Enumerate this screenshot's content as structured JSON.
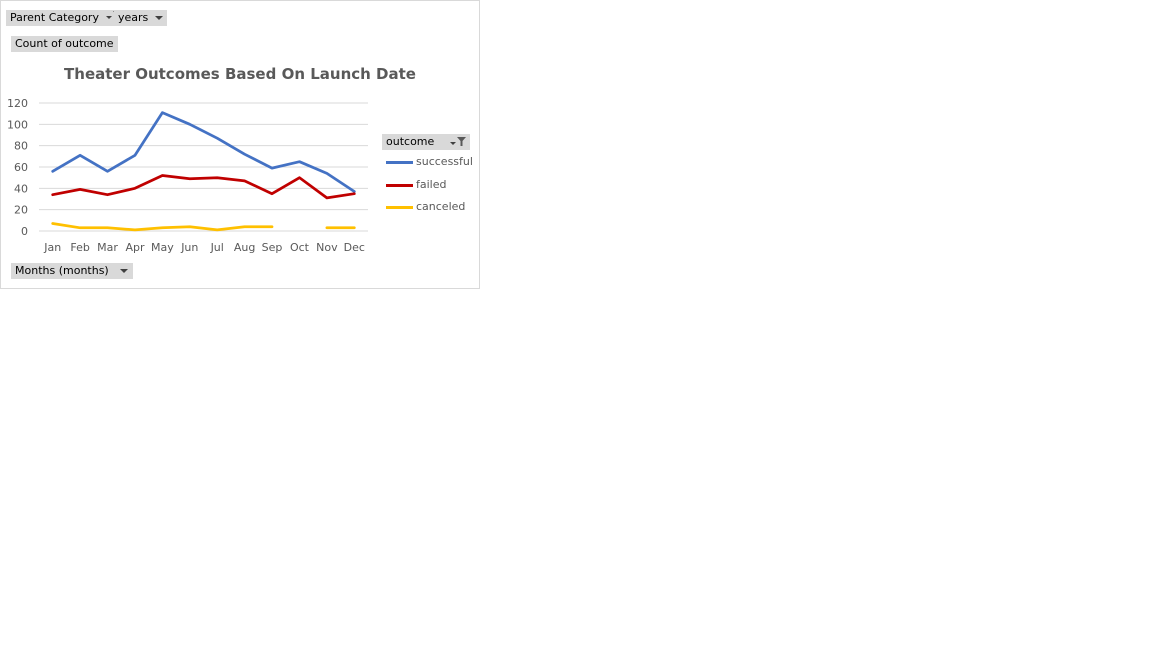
{
  "filters": {
    "parent_category": "Parent Category",
    "years": "years",
    "values_field": "Count of outcome",
    "axis_field": "Months (months)",
    "legend_field": "outcome"
  },
  "chart_data": {
    "type": "line",
    "title": "Theater Outcomes Based On Launch Date",
    "categories": [
      "Jan",
      "Feb",
      "Mar",
      "Apr",
      "May",
      "Jun",
      "Jul",
      "Aug",
      "Sep",
      "Oct",
      "Nov",
      "Dec"
    ],
    "ylim": [
      0,
      120
    ],
    "yticks": [
      "0",
      "20",
      "40",
      "60",
      "80",
      "100",
      "120"
    ],
    "grid": true,
    "legend_position": "right",
    "series": [
      {
        "name": "successful",
        "color": "#4472c4",
        "values": [
          56,
          71,
          56,
          71,
          111,
          100,
          87,
          72,
          59,
          65,
          54,
          37
        ]
      },
      {
        "name": "failed",
        "color": "#c00000",
        "values": [
          34,
          39,
          34,
          40,
          52,
          49,
          50,
          47,
          35,
          50,
          31,
          35
        ]
      },
      {
        "name": "canceled",
        "color": "#ffc000",
        "values": [
          7,
          3,
          3,
          1,
          3,
          4,
          1,
          4,
          4,
          null,
          3,
          3
        ]
      }
    ]
  }
}
